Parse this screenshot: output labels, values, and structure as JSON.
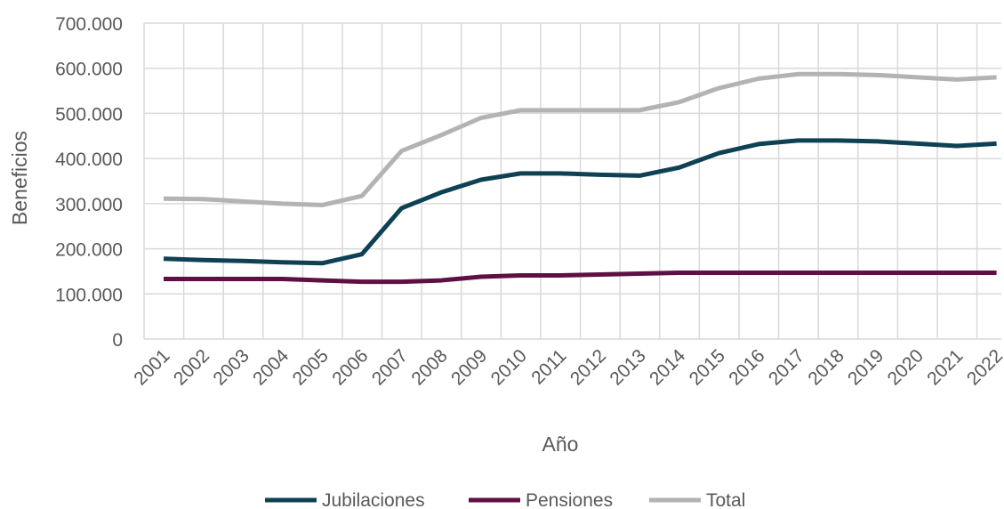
{
  "chart_data": {
    "type": "line",
    "x_label": "Año",
    "y_label": "Beneficios",
    "categories": [
      "2001",
      "2002",
      "2003",
      "2004",
      "2005",
      "2006",
      "2007",
      "2008",
      "2009",
      "2010",
      "2011",
      "2012",
      "2013",
      "2014",
      "2015",
      "2016",
      "2017",
      "2018",
      "2019",
      "2020",
      "2021",
      "2022"
    ],
    "series": [
      {
        "name": "Jubilaciones",
        "color": "#0e4154",
        "values": [
          178000,
          175000,
          173000,
          170000,
          168000,
          188000,
          290000,
          325000,
          353000,
          367000,
          367000,
          364000,
          362000,
          380000,
          412000,
          432000,
          440000,
          440000,
          438000,
          433000,
          428000,
          433000
        ]
      },
      {
        "name": "Pensiones",
        "color": "#5e0f43",
        "values": [
          133000,
          133000,
          133000,
          133000,
          130000,
          127000,
          127000,
          130000,
          138000,
          141000,
          141000,
          143000,
          145000,
          147000,
          147000,
          147000,
          147000,
          147000,
          147000,
          147000,
          147000,
          147000
        ]
      },
      {
        "name": "Total",
        "color": "#b3b3b3",
        "values": [
          311000,
          310000,
          305000,
          300000,
          297000,
          317000,
          417000,
          452000,
          490000,
          507000,
          507000,
          507000,
          507000,
          525000,
          556000,
          577000,
          587000,
          587000,
          585000,
          580000,
          575000,
          580000
        ]
      }
    ],
    "ylim": [
      0,
      700000
    ],
    "yticks": [
      0,
      {
        "value": 100000,
        "label": "100.000"
      },
      {
        "value": 200000,
        "label": "200.000"
      },
      {
        "value": 300000,
        "label": "300.000"
      },
      {
        "value": 400000,
        "label": "400.000"
      },
      {
        "value": 500000,
        "label": "500.000"
      },
      {
        "value": 600000,
        "label": "600.000"
      },
      {
        "value": 700000,
        "label": "700.000"
      }
    ],
    "grid": true,
    "legend": "bottom"
  }
}
